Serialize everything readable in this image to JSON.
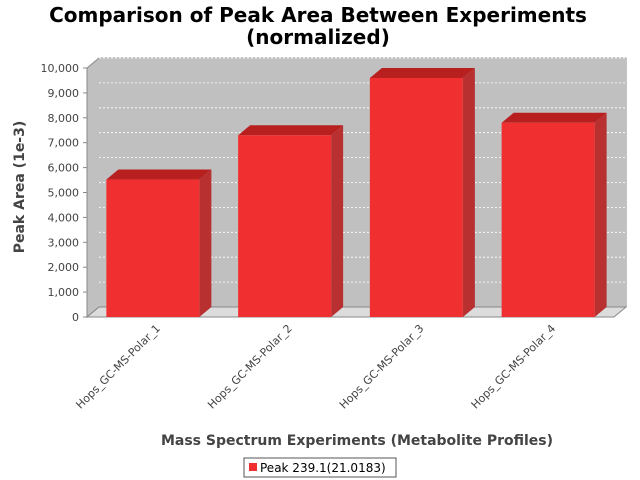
{
  "chart_data": {
    "type": "bar",
    "title": "Comparison of Peak Area Between Experiments",
    "subtitle": "(normalized)",
    "xlabel": "Mass Spectrum Experiments (Metabolite Profiles)",
    "ylabel": "Peak Area (1e-3)",
    "categories": [
      "Hops_GC-MS-Polar_1",
      "Hops_GC-MS-Polar_2",
      "Hops_GC-MS-Polar_3",
      "Hops_GC-MS-Polar_4"
    ],
    "series": [
      {
        "name": "Peak 239.1(21.0183)",
        "values": [
          5520,
          7300,
          9600,
          7800
        ]
      }
    ],
    "ylim": [
      0,
      10000
    ],
    "yticks": [
      0,
      1000,
      2000,
      3000,
      4000,
      5000,
      6000,
      7000,
      8000,
      9000,
      10000
    ],
    "ytick_labels": [
      "0",
      "1,000",
      "2,000",
      "3,000",
      "4,000",
      "5,000",
      "6,000",
      "7,000",
      "8,000",
      "9,000",
      "10,000"
    ],
    "grid": true,
    "legend_position": "bottom",
    "colors": {
      "bar": "#f03030",
      "bar_top": "#b82020",
      "bar_side": "#b83030",
      "plot_bg": "#c0c0c0",
      "floor": "#dcdcdc"
    }
  }
}
